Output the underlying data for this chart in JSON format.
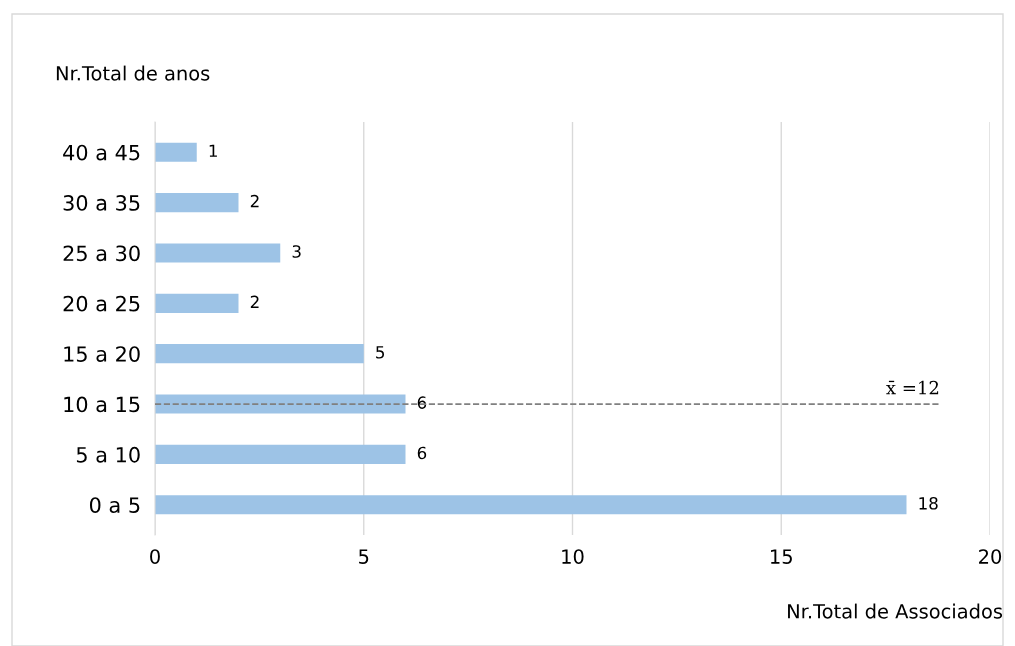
{
  "chart_data": {
    "type": "bar",
    "orientation": "horizontal",
    "ylabel": "Nr.Total de anos",
    "xlabel": "Nr.Total de Associados",
    "categories": [
      "40 a 45",
      "30 a 35",
      "25 a 30",
      "20 a 25",
      "15 a 20",
      "10 a 15",
      "5 a 10",
      "0 a 5"
    ],
    "values": [
      1,
      2,
      3,
      2,
      5,
      6,
      6,
      18
    ],
    "color": "#9dc3e6",
    "data_labels": true,
    "xlim": [
      0,
      20
    ],
    "xticks": [
      0,
      5,
      10,
      15,
      20
    ],
    "grid": "x",
    "ref_lines": [
      {
        "axis": "y",
        "value": "10 a 15",
        "label": "x̄ =12",
        "color": "#808080",
        "line_style": "dashed"
      }
    ]
  }
}
